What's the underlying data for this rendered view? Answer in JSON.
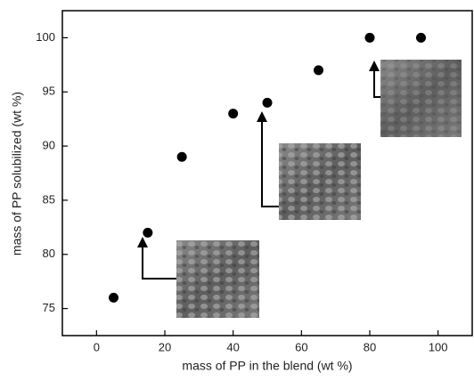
{
  "chart_data": {
    "type": "scatter",
    "x_label": "mass of PP in the blend (wt %)",
    "y_label": "mass of PP solubilized (wt %)",
    "x": [
      5,
      15,
      25,
      40,
      50,
      65,
      80,
      95
    ],
    "values": [
      76,
      82,
      89,
      93,
      94,
      97,
      100,
      100
    ],
    "color": "#000000",
    "xlim": [
      -10,
      110
    ],
    "xticks": [
      0,
      20,
      40,
      60,
      80,
      100
    ],
    "ylim": [
      72.5,
      102.5
    ],
    "yticks": [
      75,
      80,
      85,
      90,
      95,
      100
    ]
  }
}
